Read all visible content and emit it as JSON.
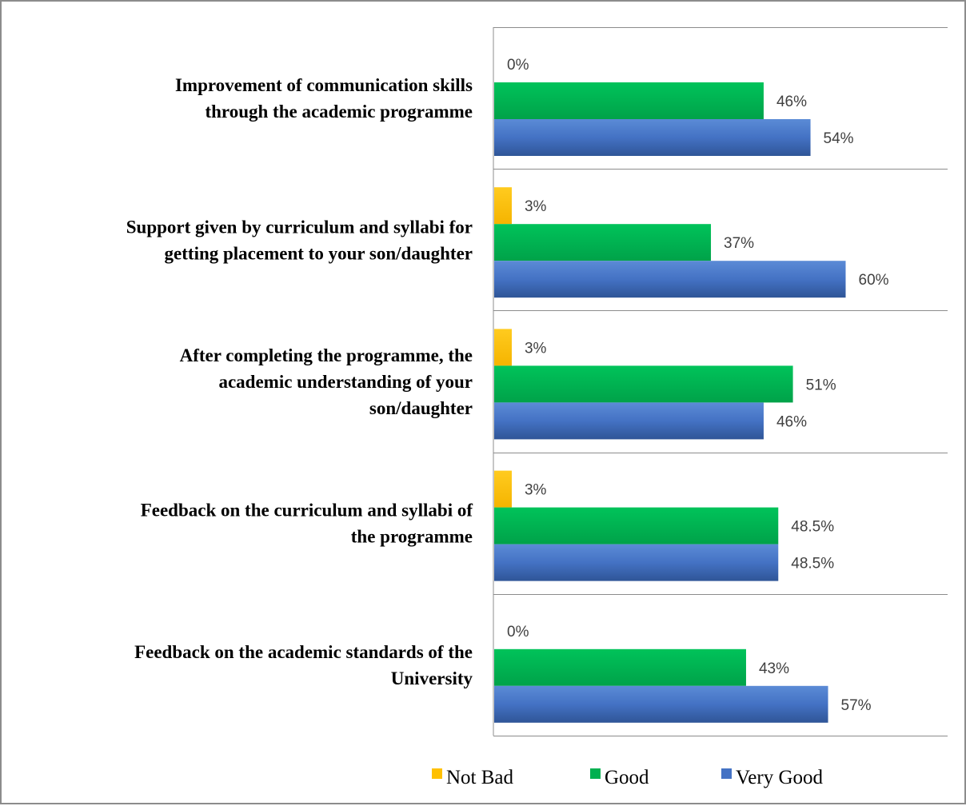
{
  "chart_data": {
    "type": "bar",
    "orientation": "horizontal",
    "title": "",
    "xlabel": "",
    "ylabel": "",
    "xlim": [
      0,
      100
    ],
    "grid": false,
    "legend_position": "bottom",
    "categories": [
      [
        "Improvement of communication skills",
        "through the academic programme"
      ],
      [
        "Support given by curriculum and syllabi for",
        "getting placement to your son/daughter"
      ],
      [
        "After completing the programme, the",
        "academic understanding of your",
        "son/daughter"
      ],
      [
        "Feedback on the curriculum and syllabi of",
        "the programme"
      ],
      [
        "Feedback on the academic standards of the",
        "University"
      ]
    ],
    "series": [
      {
        "name": "Not Bad",
        "color": "#ffc000",
        "values": [
          0,
          3,
          3,
          3,
          0
        ],
        "labels": [
          "0%",
          "3%",
          "3%",
          "3%",
          "0%"
        ]
      },
      {
        "name": "Good",
        "color": "#00b050",
        "values": [
          46,
          37,
          51,
          48.5,
          43
        ],
        "labels": [
          "46%",
          "37%",
          "51%",
          "48.5%",
          "43%"
        ]
      },
      {
        "name": "Very Good",
        "color": "#4472c4",
        "values": [
          54,
          60,
          46,
          48.5,
          57
        ],
        "labels": [
          "54%",
          "60%",
          "46%",
          "48.5%",
          "57%"
        ]
      }
    ]
  }
}
